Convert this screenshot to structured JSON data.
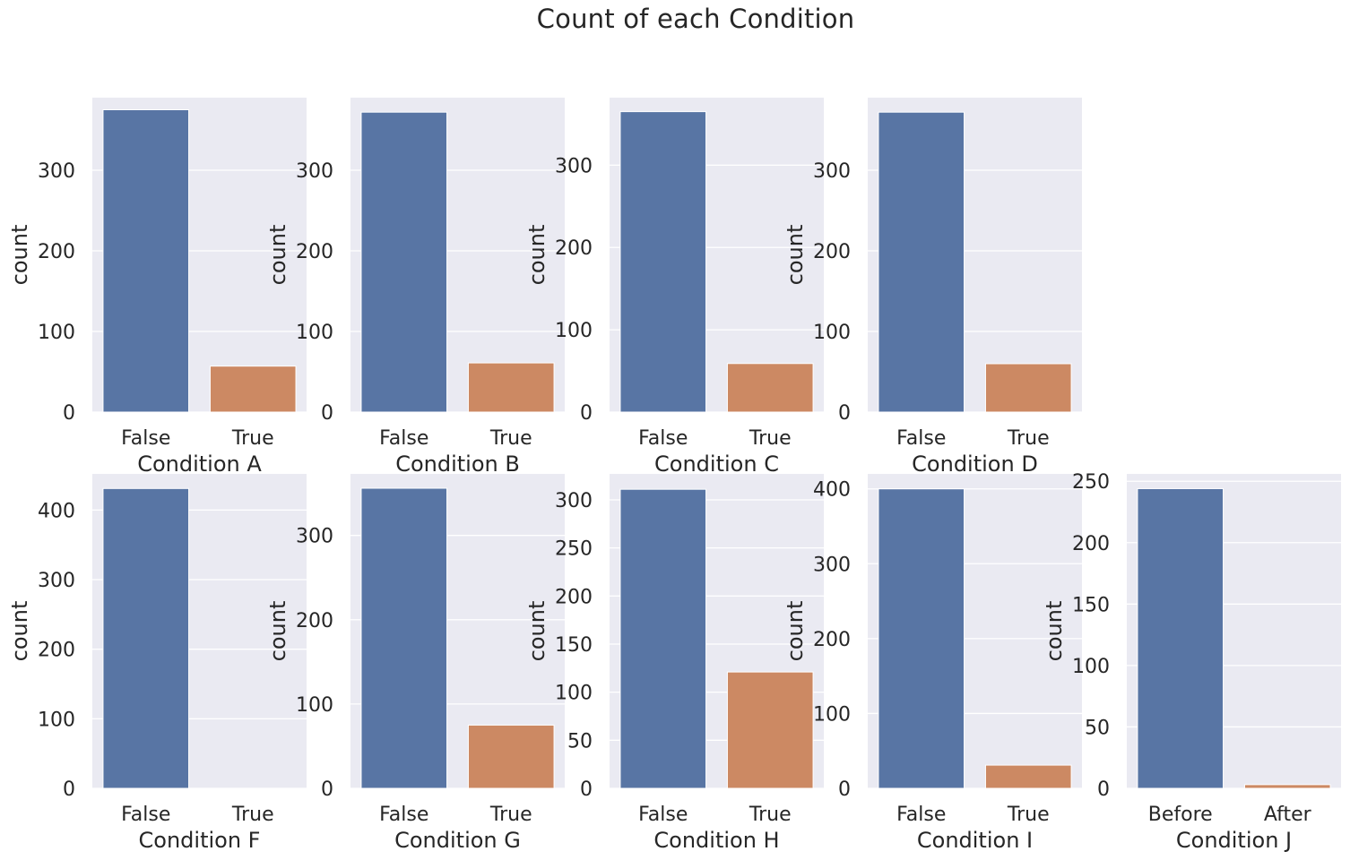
{
  "figure": {
    "title": "Count of each Condition"
  },
  "colors": {
    "background": "#eaeaf2",
    "grid": "#ffffff",
    "series_first": "#5875a4",
    "series_second": "#cc8963",
    "text": "#262626"
  },
  "chart_data": [
    {
      "type": "bar",
      "xlabel": "Condition A",
      "ylabel": "count",
      "categories": [
        "False",
        "True"
      ],
      "values": [
        375,
        57
      ],
      "ylim": [
        0,
        390
      ],
      "yticks": [
        0,
        100,
        200,
        300
      ]
    },
    {
      "type": "bar",
      "xlabel": "Condition B",
      "ylabel": "count",
      "categories": [
        "False",
        "True"
      ],
      "values": [
        372,
        61
      ],
      "ylim": [
        0,
        390
      ],
      "yticks": [
        0,
        100,
        200,
        300
      ]
    },
    {
      "type": "bar",
      "xlabel": "Condition C",
      "ylabel": "count",
      "categories": [
        "False",
        "True"
      ],
      "values": [
        365,
        59
      ],
      "ylim": [
        0,
        382
      ],
      "yticks": [
        0,
        100,
        200,
        300
      ]
    },
    {
      "type": "bar",
      "xlabel": "Condition D",
      "ylabel": "count",
      "categories": [
        "False",
        "True"
      ],
      "values": [
        372,
        60
      ],
      "ylim": [
        0,
        390
      ],
      "yticks": [
        0,
        100,
        200,
        300
      ]
    },
    {
      "type": "bar",
      "xlabel": "Condition F",
      "ylabel": "count",
      "categories": [
        "False",
        "True"
      ],
      "values": [
        431,
        0
      ],
      "ylim": [
        0,
        452
      ],
      "yticks": [
        0,
        100,
        200,
        300,
        400
      ]
    },
    {
      "type": "bar",
      "xlabel": "Condition G",
      "ylabel": "count",
      "categories": [
        "False",
        "True"
      ],
      "values": [
        356,
        75
      ],
      "ylim": [
        0,
        373
      ],
      "yticks": [
        0,
        100,
        200,
        300
      ]
    },
    {
      "type": "bar",
      "xlabel": "Condition H",
      "ylabel": "count",
      "categories": [
        "False",
        "True"
      ],
      "values": [
        311,
        121
      ],
      "ylim": [
        0,
        327
      ],
      "yticks": [
        0,
        50,
        100,
        150,
        200,
        250,
        300
      ]
    },
    {
      "type": "bar",
      "xlabel": "Condition I",
      "ylabel": "count",
      "categories": [
        "False",
        "True"
      ],
      "values": [
        400,
        31
      ],
      "ylim": [
        0,
        420
      ],
      "yticks": [
        0,
        100,
        200,
        300,
        400
      ]
    },
    {
      "type": "bar",
      "xlabel": "Condition J",
      "ylabel": "count",
      "categories": [
        "Before",
        "After"
      ],
      "values": [
        244,
        3
      ],
      "ylim": [
        0,
        256
      ],
      "yticks": [
        0,
        50,
        100,
        150,
        200,
        250
      ]
    }
  ]
}
